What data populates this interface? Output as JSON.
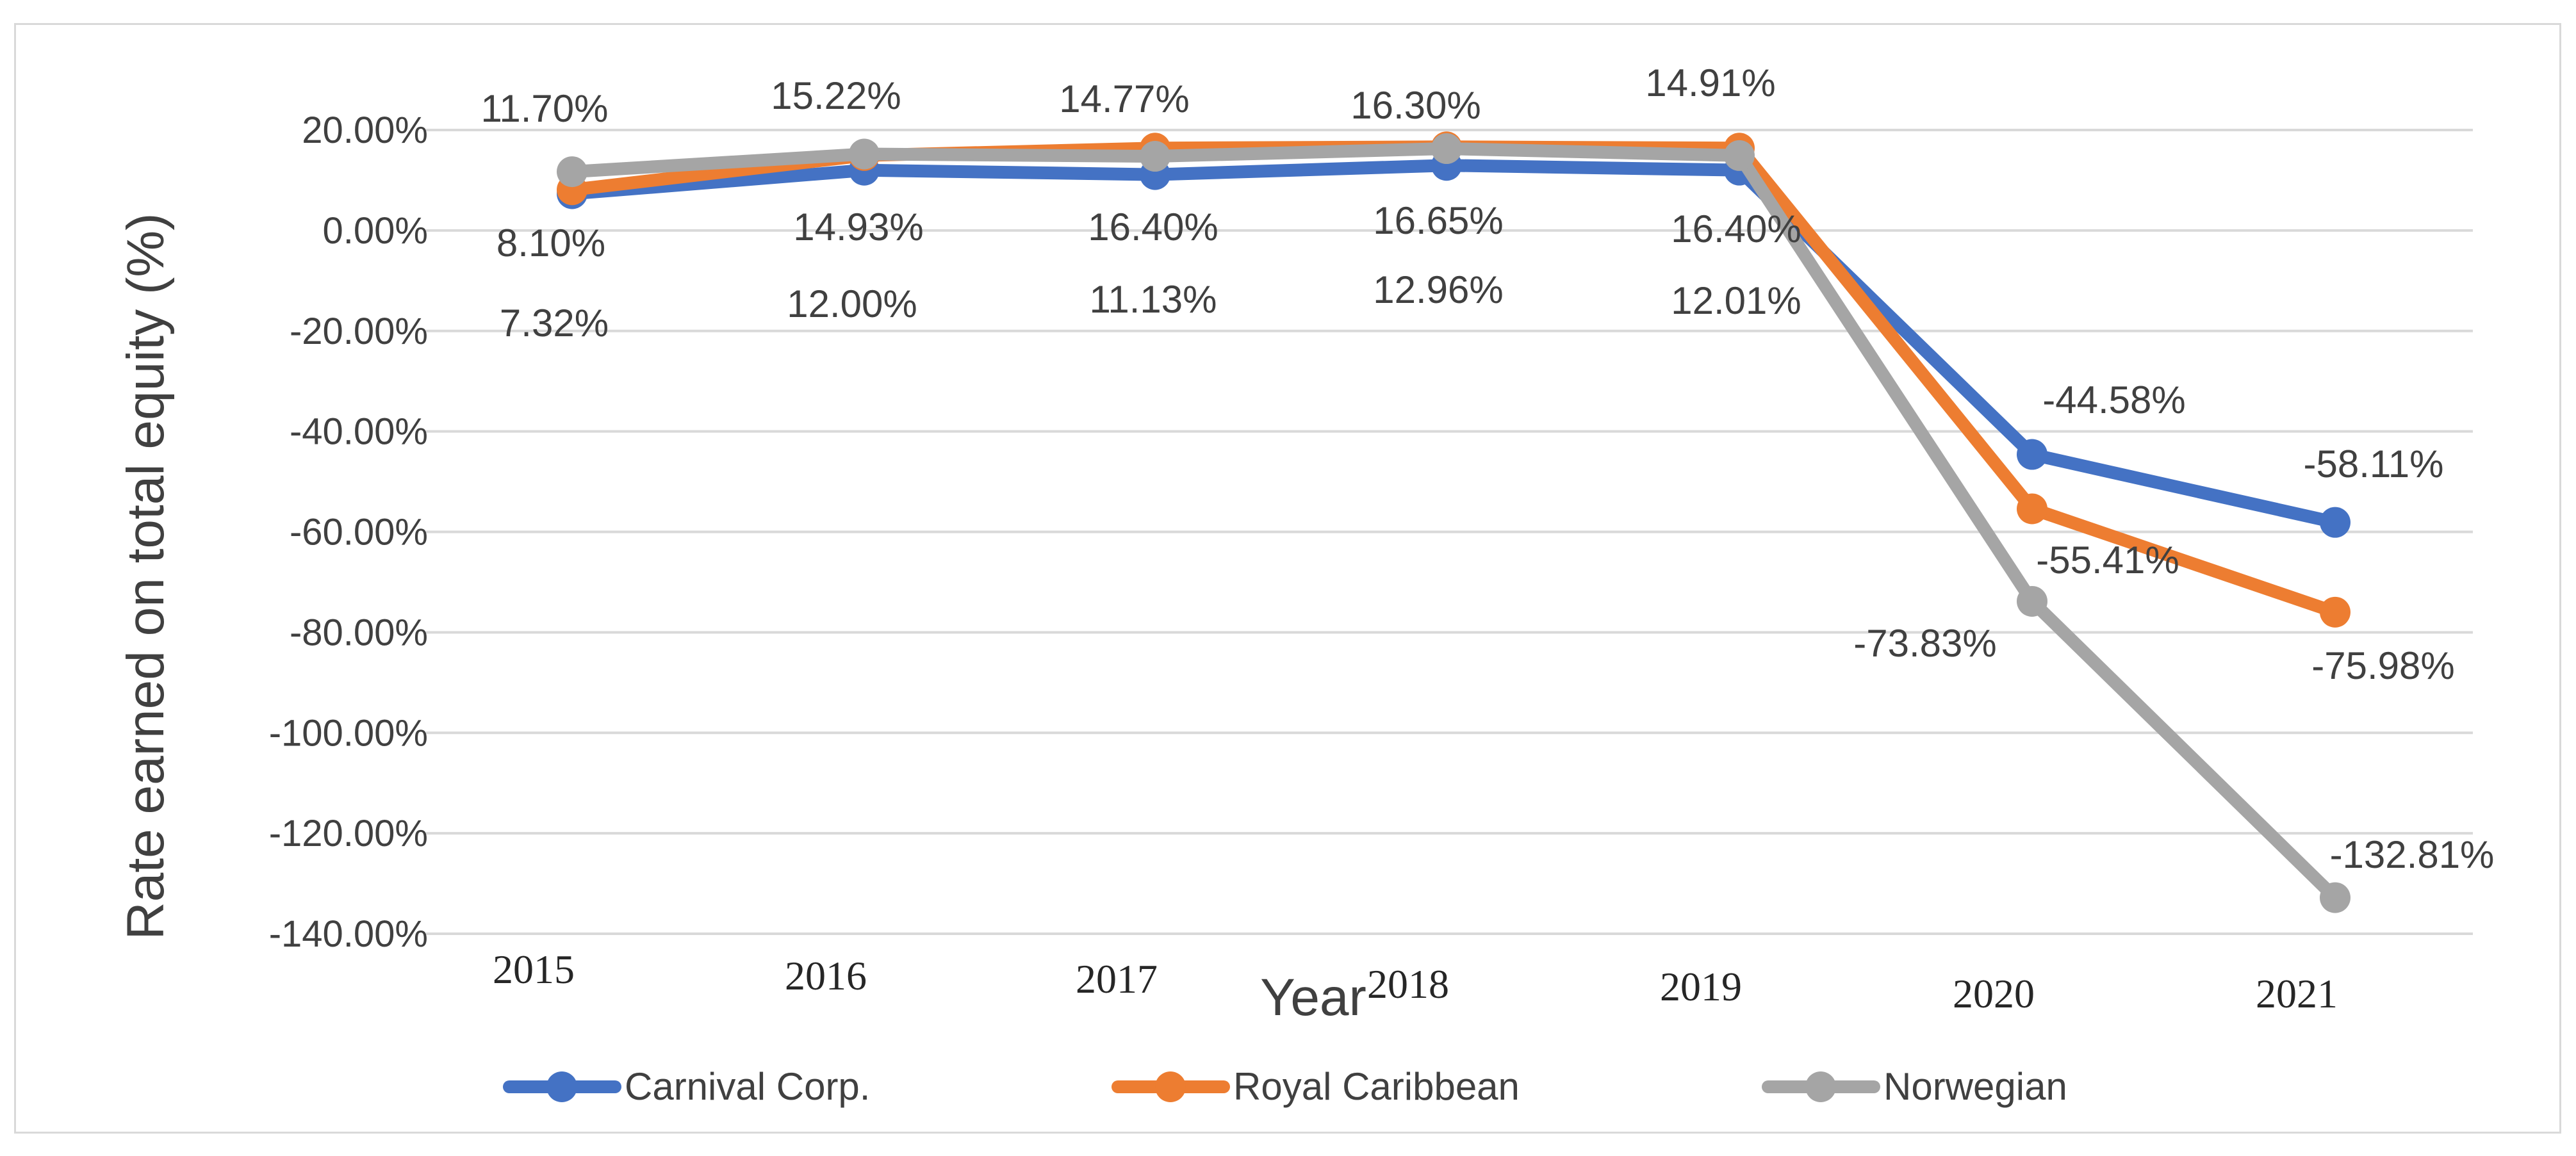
{
  "chart_data": {
    "type": "line",
    "title": "",
    "xlabel": "Year",
    "ylabel": "Rate earned on total equity (%)",
    "ylim": [
      -140,
      20
    ],
    "y_ticks": [
      20,
      0,
      -20,
      -40,
      -60,
      -80,
      -100,
      -120,
      -140
    ],
    "y_tick_labels": [
      "20.00%",
      "0.00%",
      "-20.00%",
      "-40.00%",
      "-60.00%",
      "-80.00%",
      "-100.00%",
      "-120.00%",
      "-140.00%"
    ],
    "categories": [
      "2015",
      "2016",
      "2017",
      "2018",
      "2019",
      "2020",
      "2021"
    ],
    "grid": true,
    "legend_position": "bottom",
    "series": [
      {
        "name": "Carnival Corp.",
        "color": "#4472c4",
        "values": [
          7.32,
          12.0,
          11.13,
          12.96,
          12.01,
          -44.58,
          -58.11
        ],
        "labels": [
          "7.32%",
          "12.00%",
          "11.13%",
          "12.96%",
          "12.01%",
          "-44.58%",
          "-58.11%"
        ]
      },
      {
        "name": "Royal Caribbean",
        "color": "#ed7d31",
        "values": [
          8.1,
          14.93,
          16.4,
          16.65,
          16.4,
          -55.41,
          -75.98
        ],
        "labels": [
          "8.10%",
          "14.93%",
          "16.40%",
          "16.65%",
          "16.40%",
          "-55.41%",
          "-75.98%"
        ]
      },
      {
        "name": "Norwegian",
        "color": "#a5a5a5",
        "values": [
          11.7,
          15.22,
          14.77,
          16.3,
          14.91,
          -73.83,
          -132.81
        ],
        "labels": [
          "11.70%",
          "15.22%",
          "14.77%",
          "16.30%",
          "14.91%",
          "-73.83%",
          "-132.81%"
        ]
      }
    ]
  }
}
